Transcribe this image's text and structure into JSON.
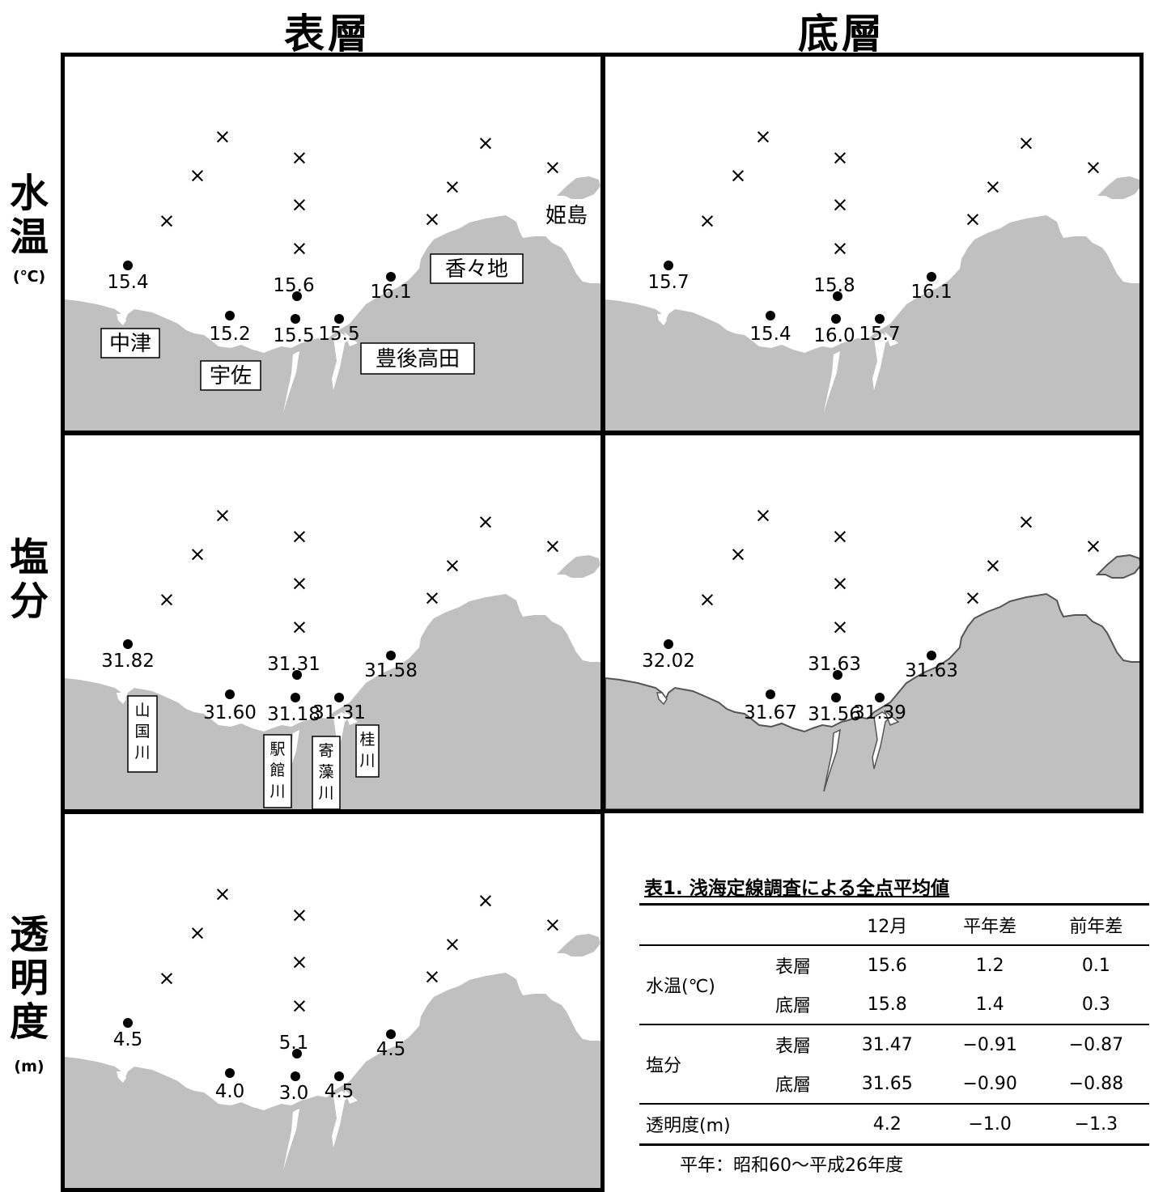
{
  "headers": {
    "columns": [
      "表層",
      "底層"
    ],
    "rows": [
      {
        "label": "水温",
        "unit": "(℃)"
      },
      {
        "label": "塩分",
        "unit": ""
      },
      {
        "label": "透明度",
        "unit": "(m)"
      }
    ]
  },
  "place_names": {
    "hime": "姫島",
    "kakuchi": "香々地",
    "nakatsu": "中津",
    "usa": "宇佐",
    "bungotakada": "豊後高田"
  },
  "river_names": {
    "yamakuni": "山国川",
    "yakkan": "駅館川",
    "yorimo": "寄藻川",
    "katsura": "桂川"
  },
  "map_values": {
    "temp_surface": [
      "15.4",
      "15.2",
      "15.6",
      "15.5",
      "15.5",
      "16.1"
    ],
    "temp_bottom": [
      "15.7",
      "15.4",
      "15.8",
      "16.0",
      "15.7",
      "16.1"
    ],
    "salinity_surface": [
      "31.82",
      "31.60",
      "31.31",
      "31.18",
      "31.31",
      "31.58"
    ],
    "salinity_bottom": [
      "32.02",
      "31.67",
      "31.63",
      "31.56",
      "31.39",
      "31.63"
    ],
    "transparency_surface": [
      "4.5",
      "4.0",
      "5.1",
      "3.0",
      "4.5",
      "4.5"
    ]
  },
  "table": {
    "title": "表1. 浅海定線調査による全点平均値",
    "col_headers": [
      "12月",
      "平年差",
      "前年差"
    ],
    "rows": [
      {
        "group": "水温(℃)",
        "layer": "表層",
        "values": [
          "15.6",
          "1.2",
          "0.1"
        ]
      },
      {
        "group": "",
        "layer": "底層",
        "values": [
          "15.8",
          "1.4",
          "0.3"
        ]
      },
      {
        "group": "塩分",
        "layer": "表層",
        "values": [
          "31.47",
          "−0.91",
          "−0.87"
        ]
      },
      {
        "group": "",
        "layer": "底層",
        "values": [
          "31.65",
          "−0.90",
          "−0.88"
        ]
      },
      {
        "group": "透明度(m)",
        "layer": "",
        "values": [
          "4.2",
          "−1.0",
          "−1.3"
        ]
      }
    ],
    "footnote": "平年：昭和60～平成26年度"
  },
  "colors": {
    "land": "#c0c0c0",
    "sea": "#ffffff",
    "frame": "#000000"
  }
}
